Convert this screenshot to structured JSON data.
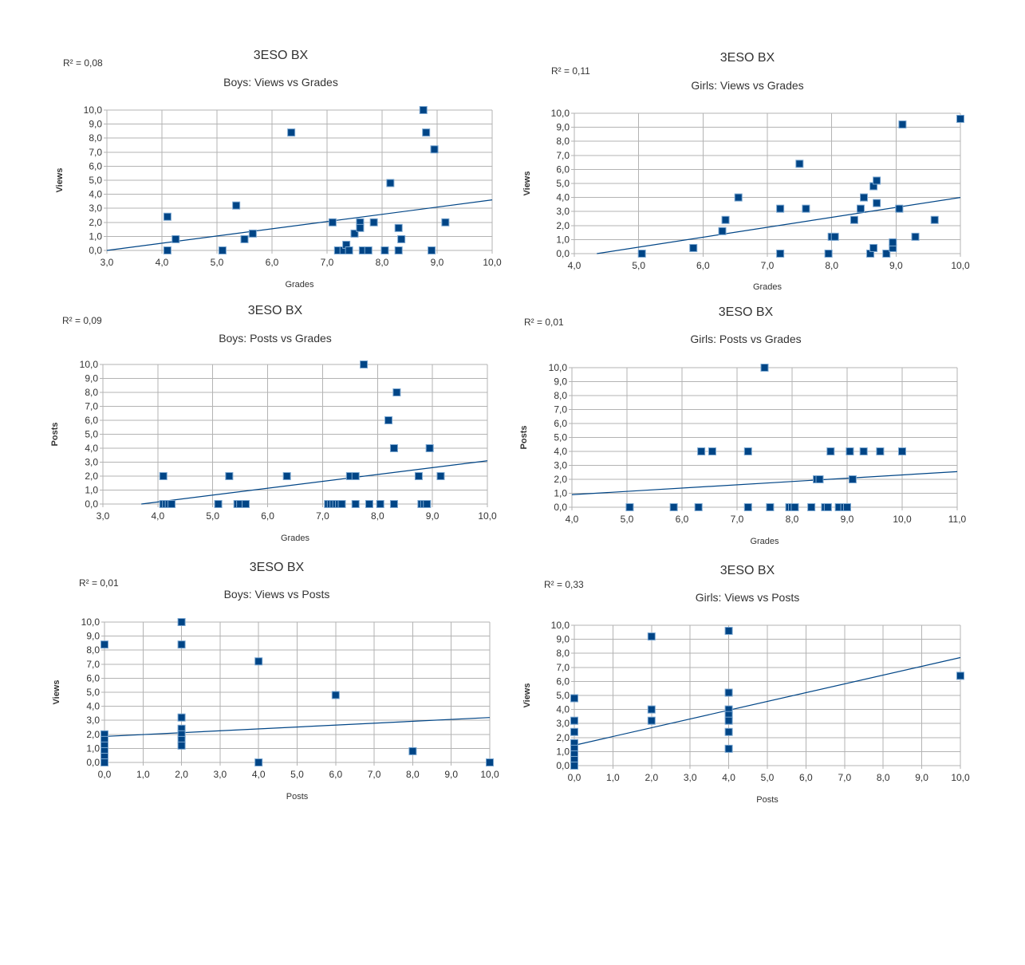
{
  "chart_data": [
    {
      "type": "scatter",
      "title": "3ESO BX",
      "subtitle": "Boys: Views vs Grades",
      "r2": "R² = 0,08",
      "xlabel": "Grades",
      "ylabel": "Views",
      "xlim": [
        3,
        10
      ],
      "ylim": [
        0,
        10
      ],
      "xticks": [
        "3,0",
        "4,0",
        "5,0",
        "6,0",
        "7,0",
        "8,0",
        "9,0",
        "10,0"
      ],
      "yticks": [
        "0,0",
        "1,0",
        "2,0",
        "3,0",
        "4,0",
        "5,0",
        "6,0",
        "7,0",
        "8,0",
        "9,0",
        "10,0"
      ],
      "grid": true,
      "trendline": [
        [
          3,
          0.0
        ],
        [
          10,
          3.6
        ]
      ],
      "points": [
        [
          4.1,
          2.4
        ],
        [
          4.1,
          0
        ],
        [
          4.25,
          0.8
        ],
        [
          5.1,
          0
        ],
        [
          5.35,
          3.2
        ],
        [
          5.5,
          0.8
        ],
        [
          5.65,
          1.2
        ],
        [
          6.35,
          8.4
        ],
        [
          7.1,
          2.0
        ],
        [
          7.2,
          0
        ],
        [
          7.3,
          0
        ],
        [
          7.35,
          0.4
        ],
        [
          7.4,
          0
        ],
        [
          7.5,
          1.2
        ],
        [
          7.6,
          2.0
        ],
        [
          7.6,
          1.6
        ],
        [
          7.65,
          0
        ],
        [
          7.75,
          0
        ],
        [
          7.85,
          2.0
        ],
        [
          8.05,
          0
        ],
        [
          8.15,
          4.8
        ],
        [
          8.3,
          1.6
        ],
        [
          8.3,
          0
        ],
        [
          8.35,
          0.8
        ],
        [
          8.75,
          10.0
        ],
        [
          8.8,
          8.4
        ],
        [
          8.9,
          0
        ],
        [
          8.95,
          7.2
        ],
        [
          9.15,
          2.0
        ]
      ]
    },
    {
      "type": "scatter",
      "title": "3ESO BX",
      "subtitle": "Girls: Views vs Grades",
      "r2": "R² = 0,11",
      "xlabel": "Grades",
      "ylabel": "Views",
      "xlim": [
        4,
        10
      ],
      "ylim": [
        0,
        10
      ],
      "xticks": [
        "4,0",
        "5,0",
        "6,0",
        "7,0",
        "8,0",
        "9,0",
        "10,0"
      ],
      "yticks": [
        "0,0",
        "1,0",
        "2,0",
        "3,0",
        "4,0",
        "5,0",
        "6,0",
        "7,0",
        "8,0",
        "9,0",
        "10,0"
      ],
      "grid": true,
      "trendline": [
        [
          4.35,
          0.0
        ],
        [
          10,
          4.0
        ]
      ],
      "points": [
        [
          5.05,
          0
        ],
        [
          5.85,
          0.4
        ],
        [
          6.3,
          1.6
        ],
        [
          6.35,
          2.4
        ],
        [
          6.55,
          4.0
        ],
        [
          7.2,
          3.2
        ],
        [
          7.2,
          0
        ],
        [
          7.5,
          6.4
        ],
        [
          7.6,
          3.2
        ],
        [
          7.95,
          0
        ],
        [
          8.0,
          1.2
        ],
        [
          8.05,
          1.2
        ],
        [
          8.35,
          2.4
        ],
        [
          8.45,
          3.2
        ],
        [
          8.5,
          4.0
        ],
        [
          8.6,
          0
        ],
        [
          8.65,
          0.4
        ],
        [
          8.65,
          4.8
        ],
        [
          8.7,
          5.2
        ],
        [
          8.7,
          3.6
        ],
        [
          8.85,
          0
        ],
        [
          8.95,
          0.4
        ],
        [
          8.95,
          0.8
        ],
        [
          9.05,
          3.2
        ],
        [
          9.1,
          9.2
        ],
        [
          9.3,
          1.2
        ],
        [
          9.6,
          2.4
        ],
        [
          10.0,
          9.6
        ]
      ]
    },
    {
      "type": "scatter",
      "title": "3ESO BX",
      "subtitle": "Boys: Posts vs Grades",
      "r2": "R² = 0,09",
      "xlabel": "Grades",
      "ylabel": "Posts",
      "xlim": [
        3,
        10
      ],
      "ylim": [
        0,
        10
      ],
      "xticks": [
        "3,0",
        "4,0",
        "5,0",
        "6,0",
        "7,0",
        "8,0",
        "9,0",
        "10,0"
      ],
      "yticks": [
        "0,0",
        "1,0",
        "2,0",
        "3,0",
        "4,0",
        "5,0",
        "6,0",
        "7,0",
        "8,0",
        "9,0",
        "10,0"
      ],
      "grid": true,
      "trendline": [
        [
          3.7,
          0.0
        ],
        [
          10,
          3.1
        ]
      ],
      "points": [
        [
          4.1,
          2.0
        ],
        [
          4.1,
          0
        ],
        [
          4.15,
          0
        ],
        [
          4.2,
          0
        ],
        [
          4.25,
          0
        ],
        [
          5.1,
          0
        ],
        [
          5.3,
          2.0
        ],
        [
          5.45,
          0
        ],
        [
          5.5,
          0
        ],
        [
          5.6,
          0
        ],
        [
          6.35,
          2.0
        ],
        [
          7.1,
          0
        ],
        [
          7.15,
          0
        ],
        [
          7.2,
          0
        ],
        [
          7.25,
          0
        ],
        [
          7.3,
          0
        ],
        [
          7.35,
          0
        ],
        [
          7.5,
          2.0
        ],
        [
          7.6,
          2.0
        ],
        [
          7.6,
          0
        ],
        [
          7.75,
          10.0
        ],
        [
          7.85,
          0
        ],
        [
          8.05,
          0
        ],
        [
          8.2,
          6.0
        ],
        [
          8.3,
          4.0
        ],
        [
          8.3,
          0
        ],
        [
          8.35,
          8.0
        ],
        [
          8.75,
          2.0
        ],
        [
          8.8,
          0
        ],
        [
          8.85,
          0
        ],
        [
          8.9,
          0
        ],
        [
          8.95,
          4.0
        ],
        [
          9.15,
          2.0
        ]
      ]
    },
    {
      "type": "scatter",
      "title": "3ESO BX",
      "subtitle": "Girls: Posts vs Grades",
      "r2": "R² = 0,01",
      "xlabel": "Grades",
      "ylabel": "Posts",
      "xlim": [
        4,
        11
      ],
      "ylim": [
        0,
        10
      ],
      "xticks": [
        "4,0",
        "5,0",
        "6,0",
        "7,0",
        "8,0",
        "9,0",
        "10,0",
        "11,0"
      ],
      "yticks": [
        "0,0",
        "1,0",
        "2,0",
        "3,0",
        "4,0",
        "5,0",
        "6,0",
        "7,0",
        "8,0",
        "9,0",
        "10,0"
      ],
      "grid": true,
      "trendline": [
        [
          4,
          0.9
        ],
        [
          11,
          2.55
        ]
      ],
      "points": [
        [
          5.05,
          0
        ],
        [
          5.85,
          0
        ],
        [
          6.3,
          0
        ],
        [
          6.35,
          4.0
        ],
        [
          6.55,
          4.0
        ],
        [
          7.2,
          4.0
        ],
        [
          7.2,
          0
        ],
        [
          7.5,
          10.0
        ],
        [
          7.6,
          0
        ],
        [
          7.95,
          0
        ],
        [
          8.0,
          0
        ],
        [
          8.05,
          0
        ],
        [
          8.35,
          0
        ],
        [
          8.45,
          2.0
        ],
        [
          8.5,
          2.0
        ],
        [
          8.6,
          0
        ],
        [
          8.65,
          0
        ],
        [
          8.7,
          4.0
        ],
        [
          8.85,
          0
        ],
        [
          8.95,
          0
        ],
        [
          9.0,
          0
        ],
        [
          9.05,
          4.0
        ],
        [
          9.1,
          2.0
        ],
        [
          9.3,
          4.0
        ],
        [
          9.6,
          4.0
        ],
        [
          10.0,
          4.0
        ]
      ]
    },
    {
      "type": "scatter",
      "title": "3ESO BX",
      "subtitle": "Boys: Views vs Posts",
      "r2": "R² = 0,01",
      "xlabel": "Posts",
      "ylabel": "Views",
      "xlim": [
        0,
        10
      ],
      "ylim": [
        0,
        10
      ],
      "xticks": [
        "0,0",
        "1,0",
        "2,0",
        "3,0",
        "4,0",
        "5,0",
        "6,0",
        "7,0",
        "8,0",
        "9,0",
        "10,0"
      ],
      "yticks": [
        "0,0",
        "1,0",
        "2,0",
        "3,0",
        "4,0",
        "5,0",
        "6,0",
        "7,0",
        "8,0",
        "9,0",
        "10,0"
      ],
      "grid": true,
      "trendline": [
        [
          0,
          1.85
        ],
        [
          10,
          3.2
        ]
      ],
      "points": [
        [
          0,
          8.4
        ],
        [
          0,
          2.0
        ],
        [
          0,
          1.6
        ],
        [
          0,
          1.2
        ],
        [
          0,
          0.8
        ],
        [
          0,
          0.4
        ],
        [
          0,
          0
        ],
        [
          2,
          10.0
        ],
        [
          2,
          8.4
        ],
        [
          2,
          3.2
        ],
        [
          2,
          2.4
        ],
        [
          2,
          2.0
        ],
        [
          2,
          1.6
        ],
        [
          2,
          1.2
        ],
        [
          4,
          7.2
        ],
        [
          4,
          0
        ],
        [
          6,
          4.8
        ],
        [
          8,
          0.8
        ],
        [
          10,
          0
        ]
      ]
    },
    {
      "type": "scatter",
      "title": "3ESO BX",
      "subtitle": "Girls: Views vs Posts",
      "r2": "R² = 0,33",
      "xlabel": "Posts",
      "ylabel": "Views",
      "xlim": [
        0,
        10
      ],
      "ylim": [
        0,
        10
      ],
      "xticks": [
        "0,0",
        "1,0",
        "2,0",
        "3,0",
        "4,0",
        "5,0",
        "6,0",
        "7,0",
        "8,0",
        "9,0",
        "10,0"
      ],
      "yticks": [
        "0,0",
        "1,0",
        "2,0",
        "3,0",
        "4,0",
        "5,0",
        "6,0",
        "7,0",
        "8,0",
        "9,0",
        "10,0"
      ],
      "grid": true,
      "trendline": [
        [
          0,
          1.45
        ],
        [
          10,
          7.7
        ]
      ],
      "points": [
        [
          0,
          4.8
        ],
        [
          0,
          3.2
        ],
        [
          0,
          2.4
        ],
        [
          0,
          1.6
        ],
        [
          0,
          1.2
        ],
        [
          0,
          0.8
        ],
        [
          0,
          0.4
        ],
        [
          0,
          0
        ],
        [
          2,
          9.2
        ],
        [
          2,
          4.0
        ],
        [
          2,
          3.2
        ],
        [
          4,
          9.6
        ],
        [
          4,
          5.2
        ],
        [
          4,
          4.0
        ],
        [
          4,
          3.6
        ],
        [
          4,
          3.2
        ],
        [
          4,
          2.4
        ],
        [
          4,
          1.2
        ],
        [
          10,
          6.4
        ]
      ]
    }
  ]
}
